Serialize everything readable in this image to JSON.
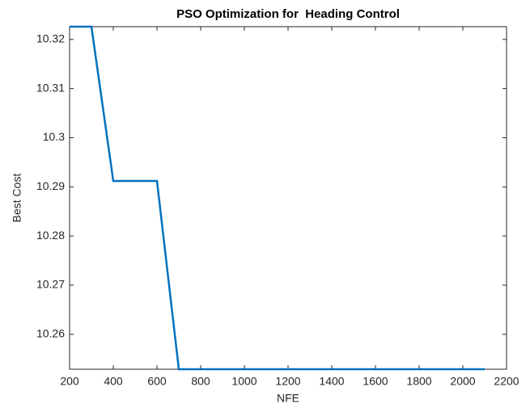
{
  "chart_data": {
    "type": "line",
    "title": "PSO Optimization for  Heading Control",
    "x_label": "NFE",
    "y_label": "Best Cost",
    "x": [
      200,
      300,
      400,
      500,
      600,
      700,
      800,
      900,
      1000,
      1100,
      1200,
      1300,
      1400,
      1500,
      1600,
      1700,
      1800,
      1900,
      2000,
      2100
    ],
    "series": [
      {
        "name": "Best Cost",
        "color": "#0072BD",
        "values": [
          10.3226,
          10.3226,
          10.2912,
          10.2912,
          10.2912,
          10.2529,
          10.2529,
          10.2529,
          10.2529,
          10.2529,
          10.2529,
          10.2529,
          10.2529,
          10.2529,
          10.2529,
          10.2529,
          10.2529,
          10.2529,
          10.2529,
          10.2529
        ]
      }
    ],
    "xlim": [
      200,
      2200
    ],
    "xticks": [
      200,
      400,
      600,
      800,
      1000,
      1200,
      1400,
      1600,
      1800,
      2000,
      2200
    ],
    "ylim": [
      10.2529,
      10.3226
    ],
    "yticks": [
      10.26,
      10.27,
      10.28,
      10.29,
      10.3,
      10.31,
      10.32
    ],
    "grid": false
  }
}
